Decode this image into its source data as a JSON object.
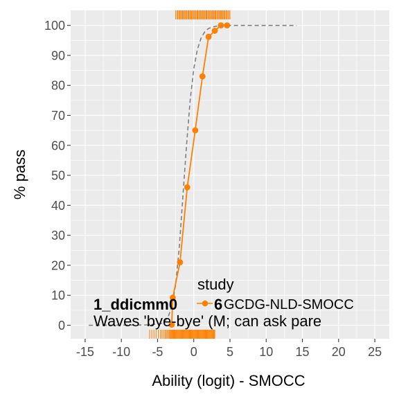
{
  "chart_data": {
    "type": "line",
    "title": "",
    "xlabel": "Ability (logit) - SMOCC",
    "ylabel": "% pass",
    "xlim": [
      -17,
      27
    ],
    "ylim": [
      -4.5,
      105
    ],
    "grid": true,
    "x_ticks": [
      -15,
      -10,
      -5,
      0,
      5,
      10,
      15,
      20,
      25
    ],
    "x_tick_labels": [
      "-15",
      "-10",
      "-5",
      "0",
      "5",
      "10",
      "15",
      "20",
      "25"
    ],
    "y_ticks": [
      0,
      10,
      20,
      30,
      40,
      50,
      60,
      70,
      80,
      90,
      100
    ],
    "y_tick_labels": [
      "0",
      "10",
      "20",
      "30",
      "40",
      "50",
      "60",
      "70",
      "80",
      "90",
      "100"
    ],
    "item_code": "1_ddicmm0",
    "item_number": "6",
    "item_label": "Waves 'bye-bye' (M; can ask pare",
    "legend": {
      "title": "study",
      "entries": [
        "GCDG-NLD-SMOCC"
      ],
      "position": "bottom"
    },
    "series": [
      {
        "name": "GCDG-NLD-SMOCC",
        "color": "#FF7F00",
        "x": [
          -3.05,
          -2.9,
          -1.9,
          -0.9,
          0.2,
          1.2,
          2.05,
          2.9,
          3.75,
          4.6
        ],
        "y": [
          0.2,
          9.2,
          21,
          46,
          65,
          83,
          96.2,
          98.2,
          100,
          100
        ]
      }
    ],
    "model_curve": {
      "style": "dashed",
      "color": "#7F7F7F",
      "x": [
        -14.5,
        -6,
        -4.5,
        -4,
        -3.5,
        -3,
        -2.5,
        -2,
        -1.5,
        -1,
        -0.5,
        0,
        0.5,
        1,
        1.5,
        2,
        2.5,
        3,
        3.5,
        4,
        5,
        8,
        14.2
      ],
      "y": [
        0,
        0.1,
        0.6,
        1.3,
        3,
        6.5,
        13.5,
        26,
        43,
        60,
        75,
        85.5,
        92,
        95.7,
        97.8,
        98.9,
        99.4,
        99.7,
        99.85,
        99.93,
        99.98,
        100,
        100
      ]
    },
    "rug": {
      "color": "#FF7F00",
      "top": [
        -2.5,
        -2.3,
        -2.2,
        -2.05,
        -1.95,
        -1.8,
        -1.7,
        -1.55,
        -1.45,
        -1.3,
        -1.2,
        -1.05,
        -0.95,
        -0.8,
        -0.7,
        -0.55,
        -0.45,
        -0.3,
        -0.2,
        -0.05,
        0.05,
        0.2,
        0.3,
        0.45,
        0.55,
        0.7,
        0.8,
        0.95,
        1.05,
        1.2,
        1.3,
        1.45,
        1.55,
        1.7,
        1.8,
        1.95,
        2.05,
        2.2,
        2.3,
        2.45,
        2.55,
        2.7,
        2.8,
        2.95,
        3.05,
        3.2,
        3.3,
        3.45,
        3.55,
        3.7,
        3.8,
        3.95,
        4.05,
        4.2,
        4.3,
        4.45,
        4.55,
        4.7,
        4.85,
        5.0
      ],
      "bottom": [
        -6.1,
        -5.8,
        -5.5,
        -5.2,
        -4.9,
        -4.6,
        -4.4,
        -4.2,
        -4.0,
        -3.85,
        -3.7,
        -3.55,
        -3.4,
        -3.3,
        -3.2,
        -3.1,
        -3.0,
        -2.9,
        -2.8,
        -2.7,
        -2.6,
        -2.5,
        -2.4,
        -2.3,
        -2.2,
        -2.1,
        -2.0,
        -1.9,
        -1.8,
        -1.7,
        -1.6,
        -1.5,
        -1.4,
        -1.3,
        -1.2,
        -1.1,
        -1.0,
        -0.9,
        -0.8,
        -0.7,
        -0.6,
        -0.5,
        -0.4,
        -0.3,
        -0.2,
        -0.1,
        0.0,
        0.1,
        0.2,
        0.3,
        0.4,
        0.5,
        0.6,
        0.7,
        0.8,
        0.9,
        1.0,
        1.1,
        1.2,
        1.3,
        1.4,
        1.5,
        1.6,
        1.7,
        1.8,
        1.9,
        2.0,
        2.1,
        2.2,
        2.3,
        2.4,
        2.5,
        2.6,
        2.7,
        2.8,
        2.9
      ]
    }
  }
}
